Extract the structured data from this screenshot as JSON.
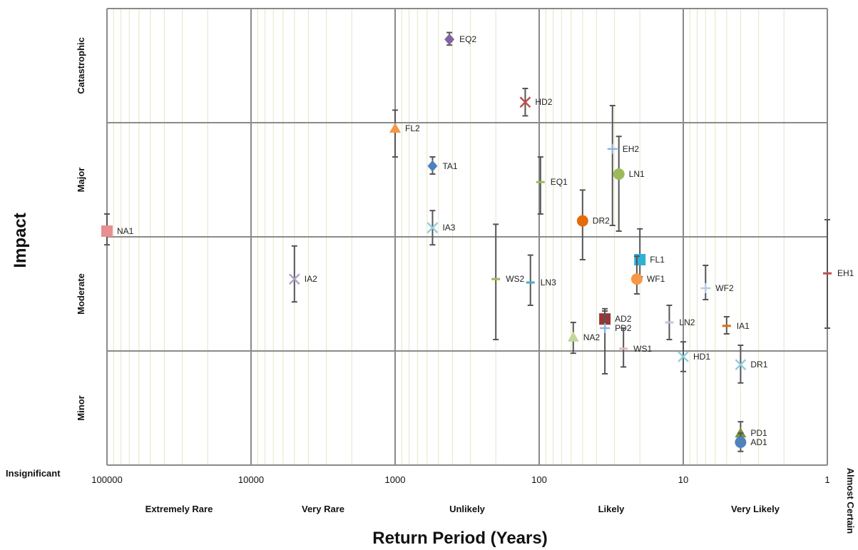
{
  "chart_data": {
    "type": "scatter",
    "title": "",
    "xlabel": "Return Period (Years)",
    "ylabel": "Impact",
    "x_scale": "log",
    "x_reversed": true,
    "xlim": [
      100000,
      1
    ],
    "x_ticks": [
      "100000",
      "10000",
      "1000",
      "100",
      "10",
      "1"
    ],
    "x_categories": [
      "Extremely Rare",
      "Very Rare",
      "Unlikely",
      "Likely",
      "Very Likely",
      "Almost Certain"
    ],
    "y_categories": [
      "Insignificant",
      "Minor",
      "Moderate",
      "Major",
      "Catastrophic"
    ],
    "ylim": [
      0,
      4
    ],
    "grid": true,
    "legend": "none",
    "points": [
      {
        "label": "EQ2",
        "x": 420,
        "y": 3.73,
        "err_low": 3.68,
        "err_high": 3.79,
        "marker": "diamond",
        "color": "#8064a2"
      },
      {
        "label": "HD2",
        "x": 125,
        "y": 3.18,
        "err_low": 3.06,
        "err_high": 3.3,
        "marker": "x",
        "color": "#c0504d"
      },
      {
        "label": "FL2",
        "x": 1000,
        "y": 2.95,
        "err_low": 2.7,
        "err_high": 3.11,
        "marker": "triangle",
        "color": "#f79646"
      },
      {
        "label": "TA1",
        "x": 550,
        "y": 2.62,
        "err_low": 2.55,
        "err_high": 2.7,
        "marker": "diamond",
        "color": "#4f81bd"
      },
      {
        "label": "EH2",
        "x": 31,
        "y": 2.77,
        "err_low": 2.1,
        "err_high": 3.15,
        "marker": "plus",
        "color": "#95b3d7"
      },
      {
        "label": "LN1",
        "x": 28,
        "y": 2.55,
        "err_low": 2.05,
        "err_high": 2.88,
        "marker": "circle",
        "color": "#9bbb59"
      },
      {
        "label": "EQ1",
        "x": 98,
        "y": 2.48,
        "err_low": 2.2,
        "err_high": 2.7,
        "marker": "dash",
        "color": "#9bbb59"
      },
      {
        "label": "DR2",
        "x": 50,
        "y": 2.14,
        "err_low": 1.8,
        "err_high": 2.41,
        "marker": "circle",
        "color": "#e46c0a"
      },
      {
        "label": "NA1",
        "x": 100000,
        "y": 2.05,
        "err_low": 1.93,
        "err_high": 2.2,
        "marker": "square",
        "color": "#e6908f"
      },
      {
        "label": "IA3",
        "x": 550,
        "y": 2.08,
        "err_low": 1.93,
        "err_high": 2.23,
        "marker": "x",
        "color": "#93cddd"
      },
      {
        "label": "FL1",
        "x": 20,
        "y": 1.8,
        "err_low": 1.65,
        "err_high": 2.07,
        "marker": "square",
        "color": "#31b0d5"
      },
      {
        "label": "EH1",
        "x": 1,
        "y": 1.68,
        "err_low": 1.2,
        "err_high": 2.15,
        "marker": "dash",
        "color": "#c0504d"
      },
      {
        "label": "IA2",
        "x": 5000,
        "y": 1.63,
        "err_low": 1.43,
        "err_high": 1.92,
        "marker": "x",
        "color": "#b2a1c7"
      },
      {
        "label": "WS2",
        "x": 200,
        "y": 1.63,
        "err_low": 1.1,
        "err_high": 2.11,
        "marker": "dash",
        "color": "#9bbb59"
      },
      {
        "label": "LN3",
        "x": 115,
        "y": 1.6,
        "err_low": 1.4,
        "err_high": 1.84,
        "marker": "dash",
        "color": "#4bacc6"
      },
      {
        "label": "WF1",
        "x": 21,
        "y": 1.63,
        "err_low": 1.5,
        "err_high": 1.83,
        "marker": "circle",
        "color": "#f79646"
      },
      {
        "label": "WF2",
        "x": 7,
        "y": 1.55,
        "err_low": 1.45,
        "err_high": 1.75,
        "marker": "plus",
        "color": "#b8cce4"
      },
      {
        "label": "AD2",
        "x": 35,
        "y": 1.28,
        "err_low": 1.2,
        "err_high": 1.37,
        "marker": "square",
        "color": "#953735"
      },
      {
        "label": "LN2",
        "x": 12.5,
        "y": 1.25,
        "err_low": 1.1,
        "err_high": 1.4,
        "marker": "dash",
        "color": "#ccc1da"
      },
      {
        "label": "IA1",
        "x": 5,
        "y": 1.22,
        "err_low": 1.15,
        "err_high": 1.3,
        "marker": "dash",
        "color": "#e46c0a"
      },
      {
        "label": "PD2",
        "x": 35,
        "y": 1.2,
        "err_low": 0.8,
        "err_high": 1.35,
        "marker": "plus",
        "color": "#95b3d7"
      },
      {
        "label": "NA2",
        "x": 58,
        "y": 1.12,
        "err_low": 0.98,
        "err_high": 1.25,
        "marker": "triangle",
        "color": "#c3d69b"
      },
      {
        "label": "WS1",
        "x": 26,
        "y": 1.02,
        "err_low": 0.86,
        "err_high": 1.2,
        "marker": "dash",
        "color": "#e6b9b8"
      },
      {
        "label": "HD1",
        "x": 10,
        "y": 0.95,
        "err_low": 0.82,
        "err_high": 1.08,
        "marker": "x",
        "color": "#93cddd"
      },
      {
        "label": "DR1",
        "x": 4,
        "y": 0.88,
        "err_low": 0.72,
        "err_high": 1.05,
        "marker": "x",
        "color": "#93cddd"
      },
      {
        "label": "PD1",
        "x": 4,
        "y": 0.28,
        "err_low": 0.18,
        "err_high": 0.38,
        "marker": "triangle",
        "color": "#77933c"
      },
      {
        "label": "AD1",
        "x": 4,
        "y": 0.2,
        "err_low": 0.12,
        "err_high": 0.28,
        "marker": "circle",
        "color": "#4f81bd"
      }
    ]
  }
}
